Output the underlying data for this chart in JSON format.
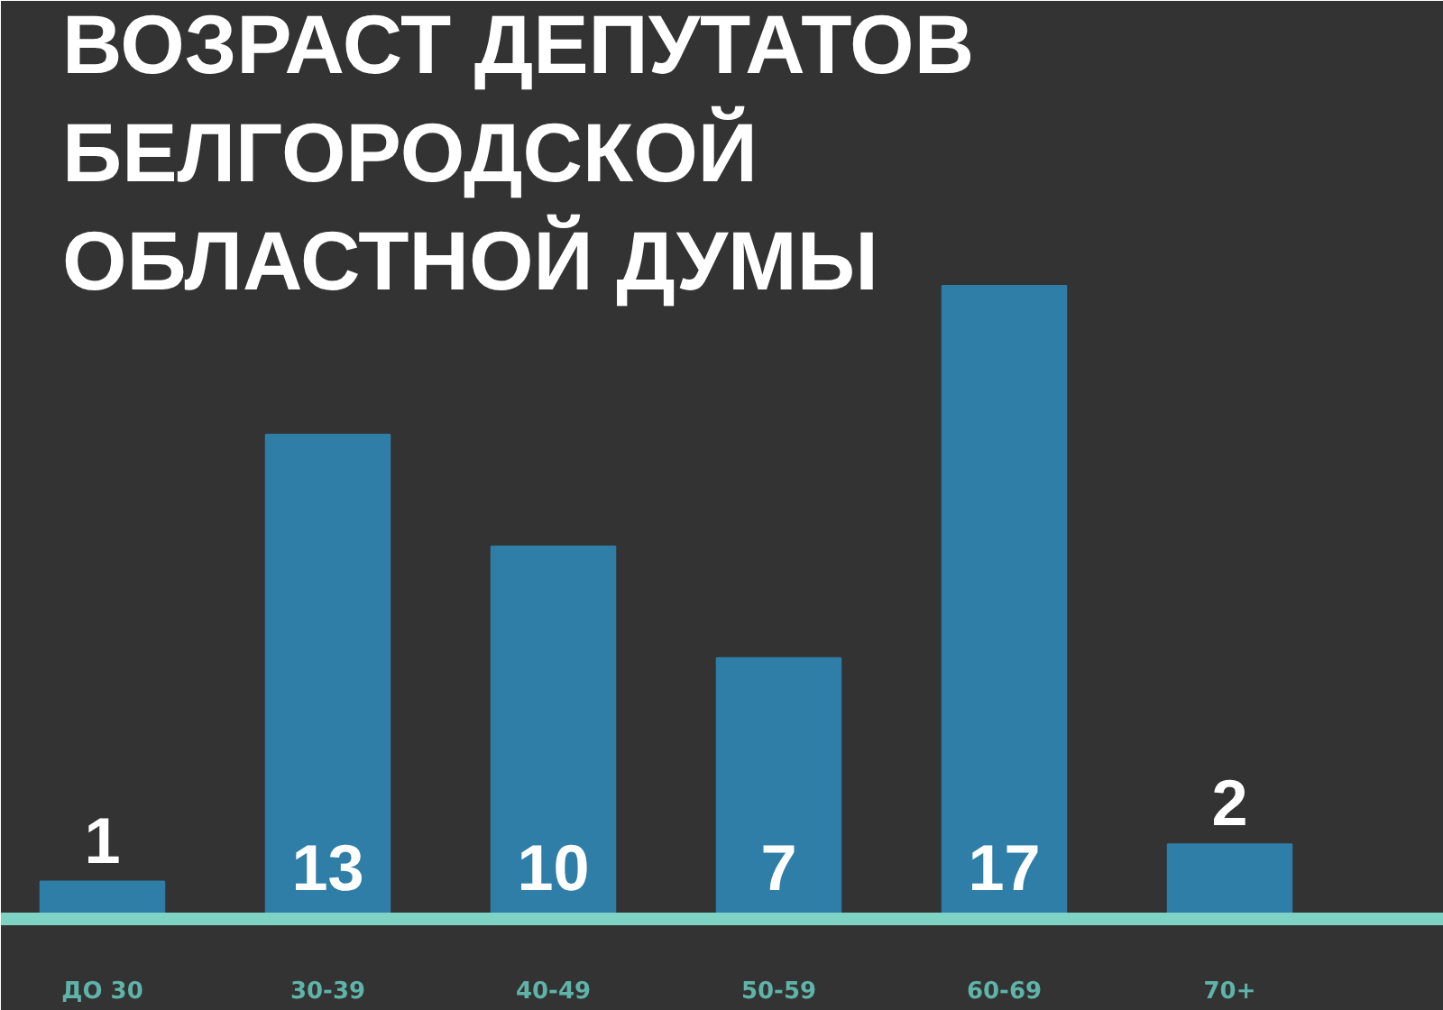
{
  "chart_data": {
    "type": "bar",
    "title": "ВОЗРАСТ ДЕПУТАТОВ\nБЕЛГОРОДСКОЙ\nОБЛАСТНОЙ ДУМЫ",
    "categories": [
      "ДО 30",
      "30-39",
      "40-49",
      "50-59",
      "60-69",
      "70+"
    ],
    "values": [
      1,
      13,
      10,
      7,
      17,
      2
    ],
    "color": "#2f7ea8",
    "data_labels": true,
    "grid": false
  }
}
